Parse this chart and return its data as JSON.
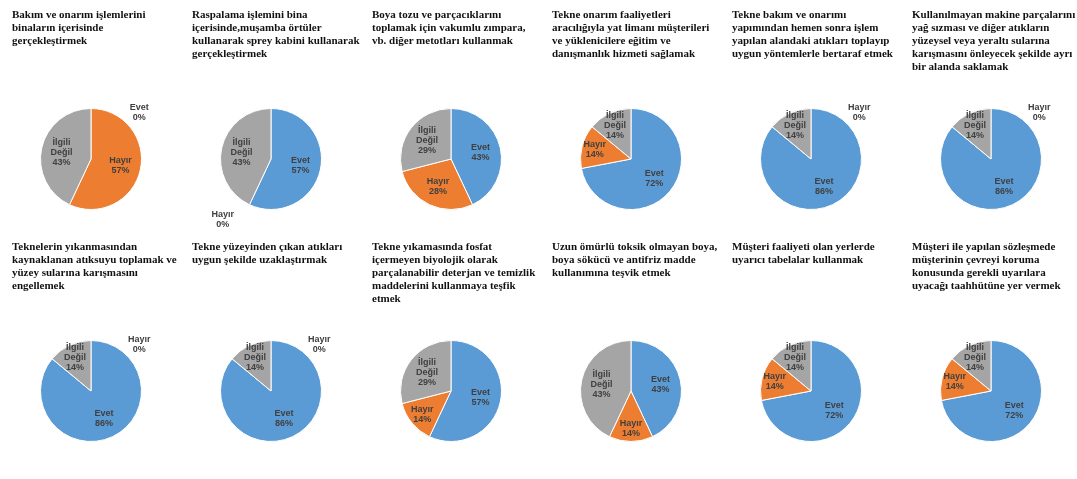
{
  "chart_data": [
    {
      "type": "pie",
      "title": "Bakım ve onarım işlemlerini binaların içerisinde gerçekleştirmek",
      "categories": [
        "Evet",
        "Hayır",
        "İlgili Değil"
      ],
      "values": [
        0,
        57,
        43
      ],
      "value_labels": [
        "0%",
        "57%",
        "43%"
      ],
      "colors": [
        "#5b9bd5",
        "#ed7d31",
        "#a5a5a5"
      ],
      "legend": false
    },
    {
      "type": "pie",
      "title": "Raspalama işlemini bina içerisinde,muşamba örtüler kullanarak sprey kabini kullanarak gerçekleştirmek",
      "categories": [
        "Evet",
        "Hayır",
        "İlgili Değil"
      ],
      "values": [
        57,
        0,
        43
      ],
      "value_labels": [
        "57%",
        "0%",
        "43%"
      ],
      "colors": [
        "#5b9bd5",
        "#ed7d31",
        "#a5a5a5"
      ],
      "legend": false
    },
    {
      "type": "pie",
      "title": "Boya tozu ve parçacıklarını toplamak için vakumlu zımpara, vb. diğer metotları kullanmak",
      "categories": [
        "Evet",
        "Hayır",
        "İlgili Değil"
      ],
      "values": [
        43,
        28,
        29
      ],
      "value_labels": [
        "43%",
        "28%",
        "29%"
      ],
      "colors": [
        "#5b9bd5",
        "#ed7d31",
        "#a5a5a5"
      ],
      "legend": false
    },
    {
      "type": "pie",
      "title": "Tekne onarım faaliyetleri aracılığıyla yat limanı müşterileri ve yüklenicilere eğitim ve danışmanlık hizmeti sağlamak",
      "categories": [
        "Evet",
        "Hayır",
        "İlgili Değil"
      ],
      "values": [
        72,
        14,
        14
      ],
      "value_labels": [
        "72%",
        "14%",
        "14%"
      ],
      "colors": [
        "#5b9bd5",
        "#ed7d31",
        "#a5a5a5"
      ],
      "legend": false
    },
    {
      "type": "pie",
      "title": "Tekne bakım ve onarımı yapımından hemen sonra işlem yapılan alandaki atıkları toplayıp uygun yöntemlerle bertaraf etmek",
      "categories": [
        "Evet",
        "Hayır",
        "İlgili Değil"
      ],
      "values": [
        86,
        0,
        14
      ],
      "value_labels": [
        "86%",
        "0%",
        "14%"
      ],
      "colors": [
        "#5b9bd5",
        "#ed7d31",
        "#a5a5a5"
      ],
      "legend": false
    },
    {
      "type": "pie",
      "title": "Kullanılmayan makine parçalarını yağ sızması ve diğer atıkların yüzeysel veya yeraltı sularına karışmasını önleyecek şekilde ayrı bir alanda saklamak",
      "categories": [
        "Evet",
        "Hayır",
        "İlgili Değil"
      ],
      "values": [
        86,
        0,
        14
      ],
      "value_labels": [
        "86%",
        "0%",
        "14%"
      ],
      "colors": [
        "#5b9bd5",
        "#ed7d31",
        "#a5a5a5"
      ],
      "legend": false
    },
    {
      "type": "pie",
      "title": "Teknelerin yıkanmasından kaynaklanan atıksuyu toplamak ve yüzey sularına karışmasını engellemek",
      "categories": [
        "Evet",
        "Hayır",
        "İlgili Değil"
      ],
      "values": [
        86,
        0,
        14
      ],
      "value_labels": [
        "86%",
        "0%",
        "14%"
      ],
      "colors": [
        "#5b9bd5",
        "#ed7d31",
        "#a5a5a5"
      ],
      "legend": false
    },
    {
      "type": "pie",
      "title": "Tekne yüzeyinden çıkan atıkları uygun şekilde uzaklaştırmak",
      "categories": [
        "Evet",
        "Hayır",
        "İlgili Değil"
      ],
      "values": [
        86,
        0,
        14
      ],
      "value_labels": [
        "86%",
        "0%",
        "14%"
      ],
      "colors": [
        "#5b9bd5",
        "#ed7d31",
        "#a5a5a5"
      ],
      "legend": false
    },
    {
      "type": "pie",
      "title": "Tekne yıkamasında fosfat içermeyen biyolojik olarak parçalanabilir deterjan ve temizlik maddelerini kullanmaya teşfik etmek",
      "categories": [
        "Evet",
        "Hayır",
        "İlgili Değil"
      ],
      "values": [
        57,
        14,
        29
      ],
      "value_labels": [
        "57%",
        "14%",
        "29%"
      ],
      "colors": [
        "#5b9bd5",
        "#ed7d31",
        "#a5a5a5"
      ],
      "legend": false
    },
    {
      "type": "pie",
      "title": "Uzun ömürlü toksik olmayan boya, boya sökücü ve antifriz madde kullanımına teşvik etmek",
      "categories": [
        "Evet",
        "Hayır",
        "İlgili Değil"
      ],
      "values": [
        43,
        14,
        43
      ],
      "value_labels": [
        "43%",
        "14%",
        "43%"
      ],
      "colors": [
        "#5b9bd5",
        "#ed7d31",
        "#a5a5a5"
      ],
      "legend": false
    },
    {
      "type": "pie",
      "title": "Müşteri faaliyeti olan yerlerde uyarıcı tabelalar kullanmak",
      "categories": [
        "Evet",
        "Hayır",
        "İlgili Değil"
      ],
      "values": [
        72,
        14,
        14
      ],
      "value_labels": [
        "72%",
        "14%",
        "14%"
      ],
      "colors": [
        "#5b9bd5",
        "#ed7d31",
        "#a5a5a5"
      ],
      "legend": false
    },
    {
      "type": "pie",
      "title": "Müşteri ile yapılan sözleşmede müşterinin çevreyi koruma konusunda gerekli uyarılara uyacağı taahhütüne yer vermek",
      "categories": [
        "Evet",
        "Hayır",
        "İlgili Değil"
      ],
      "values": [
        72,
        14,
        14
      ],
      "value_labels": [
        "72%",
        "14%",
        "14%"
      ],
      "colors": [
        "#5b9bd5",
        "#ed7d31",
        "#a5a5a5"
      ],
      "legend": false
    }
  ]
}
